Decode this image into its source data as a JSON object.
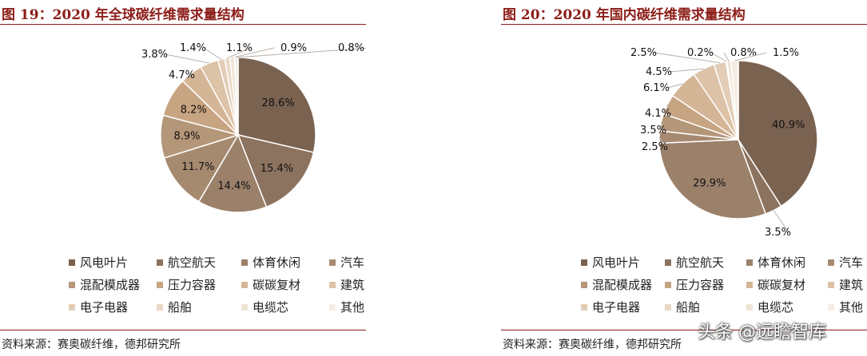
{
  "legend_labels": [
    "风电叶片",
    "航空航天",
    "体育休闲",
    "汽车",
    "混配模成器",
    "压力容器",
    "碳碳复材",
    "建筑",
    "电子电器",
    "船舶",
    "电缆芯",
    "其他"
  ],
  "colors": [
    "#7a6250",
    "#8c735f",
    "#9b806a",
    "#a68a70",
    "#b49678",
    "#c7a482",
    "#d4b697",
    "#dcc2a6",
    "#e3cdb6",
    "#ead8c6",
    "#efe3d6",
    "#f5ede4"
  ],
  "charts": [
    {
      "title": "图 19：2020 年全球碳纤维需求量结构",
      "source": "资料来源：赛奥碳纤维，德邦研究所"
    },
    {
      "title": "图 20：2020 年国内碳纤维需求量结构",
      "source": "资料来源：赛奥碳纤维，德邦研究所"
    }
  ],
  "watermark": "头条 @远瞻智库",
  "chart_data": [
    {
      "type": "pie",
      "title": "图 19：2020 年全球碳纤维需求量结构",
      "categories": [
        "风电叶片",
        "航空航天",
        "体育休闲",
        "汽车",
        "混配模成器",
        "压力容器",
        "碳碳复材",
        "建筑",
        "电子电器",
        "船舶",
        "电缆芯",
        "其他"
      ],
      "values": [
        28.6,
        15.4,
        14.4,
        11.7,
        8.9,
        8.2,
        4.7,
        3.8,
        1.4,
        1.1,
        0.9,
        0.8
      ],
      "labels": [
        "28.6%",
        "15.4%",
        "14.4%",
        "11.7%",
        "8.9%",
        "8.2%",
        "4.7%",
        "3.8%",
        "1.4%",
        "1.1%",
        "0.9%",
        "0.8%"
      ],
      "legend": "bottom"
    },
    {
      "type": "pie",
      "title": "图 20：2020 年国内碳纤维需求量结构",
      "categories": [
        "风电叶片",
        "航空航天",
        "体育休闲",
        "汽车",
        "混配模成器",
        "压力容器",
        "碳碳复材",
        "建筑",
        "电子电器",
        "船舶",
        "电缆芯",
        "其他"
      ],
      "values": [
        40.9,
        3.5,
        29.9,
        2.5,
        3.5,
        4.1,
        6.1,
        4.5,
        2.5,
        0.2,
        0.8,
        1.5
      ],
      "labels": [
        "40.9%",
        "3.5%",
        "29.9%",
        "2.5%",
        "3.5%",
        "4.1%",
        "6.1%",
        "4.5%",
        "2.5%",
        "0.2%",
        "0.8%",
        "1.5%"
      ],
      "legend": "bottom"
    }
  ]
}
